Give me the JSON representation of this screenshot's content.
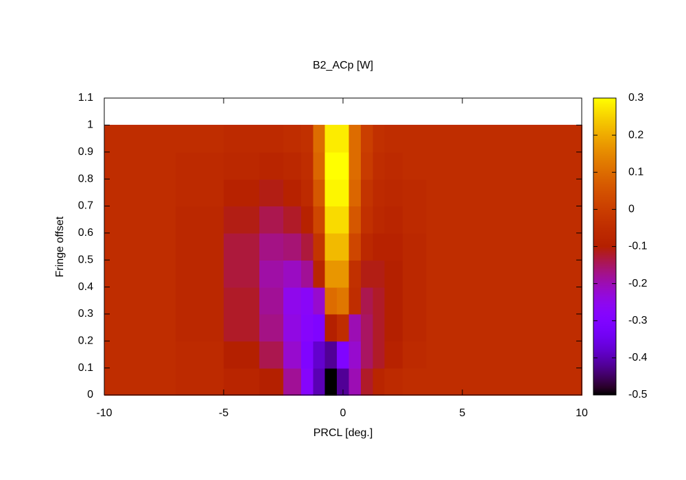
{
  "chart_data": {
    "type": "heatmap",
    "title": "B2_ACp [W]",
    "xlabel": "PRCL [deg.]",
    "ylabel": "Fringe offset",
    "x": [
      -10,
      -8,
      -6,
      -4,
      -3,
      -2,
      -1.5,
      -1,
      -0.5,
      0,
      0.5,
      1,
      1.5,
      2,
      3,
      4,
      6,
      8,
      10
    ],
    "y": [
      0.05,
      0.15,
      0.25,
      0.35,
      0.45,
      0.55,
      0.65,
      0.75,
      0.85,
      0.95
    ],
    "z": [
      [
        -0.05,
        -0.05,
        -0.06,
        -0.08,
        -0.1,
        -0.18,
        -0.28,
        -0.4,
        -0.5,
        -0.42,
        -0.2,
        -0.12,
        -0.08,
        -0.06,
        -0.05,
        -0.05,
        -0.05,
        -0.05,
        -0.05
      ],
      [
        -0.05,
        -0.05,
        -0.06,
        -0.1,
        -0.14,
        -0.22,
        -0.3,
        -0.38,
        -0.42,
        -0.3,
        -0.22,
        -0.15,
        -0.12,
        -0.09,
        -0.06,
        -0.05,
        -0.05,
        -0.05,
        -0.05
      ],
      [
        -0.05,
        -0.05,
        -0.07,
        -0.12,
        -0.17,
        -0.24,
        -0.28,
        -0.3,
        -0.1,
        -0.05,
        -0.2,
        -0.15,
        -0.12,
        -0.1,
        -0.07,
        -0.05,
        -0.05,
        -0.05,
        -0.05
      ],
      [
        -0.05,
        -0.05,
        -0.07,
        -0.12,
        -0.18,
        -0.25,
        -0.27,
        -0.22,
        0.1,
        0.12,
        -0.05,
        -0.14,
        -0.12,
        -0.1,
        -0.07,
        -0.05,
        -0.05,
        -0.05,
        -0.05
      ],
      [
        -0.05,
        -0.05,
        -0.07,
        -0.13,
        -0.19,
        -0.21,
        -0.18,
        -0.08,
        0.17,
        0.17,
        -0.04,
        -0.11,
        -0.11,
        -0.1,
        -0.07,
        -0.05,
        -0.05,
        -0.05,
        -0.05
      ],
      [
        -0.05,
        -0.05,
        -0.07,
        -0.13,
        -0.17,
        -0.16,
        -0.13,
        -0.03,
        0.22,
        0.22,
        0.02,
        -0.07,
        -0.09,
        -0.09,
        -0.07,
        -0.05,
        -0.05,
        -0.05,
        -0.05
      ],
      [
        -0.05,
        -0.05,
        -0.07,
        -0.11,
        -0.14,
        -0.12,
        -0.09,
        0.02,
        0.26,
        0.26,
        0.06,
        -0.04,
        -0.07,
        -0.08,
        -0.06,
        -0.05,
        -0.05,
        -0.05,
        -0.05
      ],
      [
        -0.05,
        -0.05,
        -0.06,
        -0.09,
        -0.11,
        -0.09,
        -0.06,
        0.06,
        0.29,
        0.29,
        0.09,
        -0.03,
        -0.06,
        -0.07,
        -0.06,
        -0.05,
        -0.05,
        -0.05,
        -0.05
      ],
      [
        -0.05,
        -0.05,
        -0.06,
        -0.07,
        -0.08,
        -0.07,
        -0.05,
        0.09,
        0.3,
        0.3,
        0.1,
        -0.01,
        -0.05,
        -0.06,
        -0.05,
        -0.05,
        -0.05,
        -0.05,
        -0.05
      ],
      [
        -0.05,
        -0.05,
        -0.05,
        -0.06,
        -0.06,
        -0.05,
        -0.04,
        0.1,
        0.28,
        0.28,
        0.1,
        0,
        -0.04,
        -0.05,
        -0.05,
        -0.05,
        -0.05,
        -0.05,
        -0.05
      ]
    ],
    "xlim": [
      -10,
      10
    ],
    "xticks": [
      -10,
      -5,
      0,
      5,
      10
    ],
    "ylim": [
      0,
      1.1
    ],
    "yticks": [
      0,
      0.1,
      0.2,
      0.3,
      0.4,
      0.5,
      0.6,
      0.7,
      0.8,
      0.9,
      1,
      1.1
    ],
    "cblim": [
      -0.5,
      0.3
    ],
    "cbticks": [
      -0.5,
      -0.4,
      -0.3,
      -0.2,
      -0.1,
      0,
      0.1,
      0.2,
      0.3
    ]
  }
}
